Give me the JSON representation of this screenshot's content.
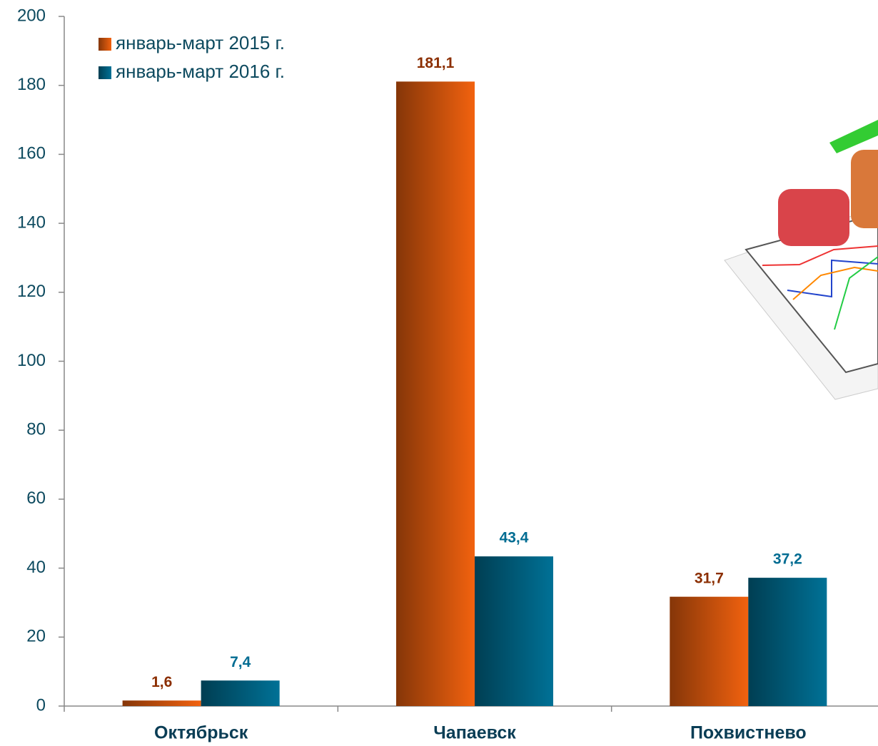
{
  "chart_data": {
    "type": "bar",
    "categories": [
      "Октябрьск",
      "Чапаевск",
      "Похвистнево"
    ],
    "series": [
      {
        "name": "январь-март 2015 г.",
        "color": "#f2620f",
        "label_color": "#8b2e00",
        "values": [
          1.6,
          181.1,
          31.7
        ],
        "value_labels": [
          "1,6",
          "181,1",
          "31,7"
        ]
      },
      {
        "name": "январь-март 2016 г.",
        "color": "#007196",
        "label_color": "#006c92",
        "values": [
          7.4,
          43.4,
          37.2
        ],
        "value_labels": [
          "7,4",
          "43,4",
          "37,2"
        ]
      }
    ],
    "ylim": [
      0,
      200
    ],
    "yticks": [
      0,
      20,
      40,
      60,
      80,
      100,
      120,
      140,
      160,
      180,
      200
    ],
    "legend": "top-left"
  }
}
